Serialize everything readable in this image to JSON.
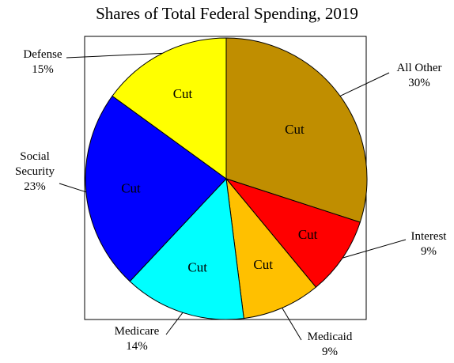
{
  "chart_data": {
    "type": "pie",
    "title": "Shares of Total Federal Spending, 2019",
    "start_angle_deg": 90,
    "direction": "clockwise",
    "slices": [
      {
        "category": [
          "All Other"
        ],
        "percent_label": "30%",
        "value": 30,
        "inner_label": "Cut",
        "color": "#C08E00"
      },
      {
        "category": [
          "Interest"
        ],
        "percent_label": "9%",
        "value": 9,
        "inner_label": "Cut",
        "color": "#FF0000"
      },
      {
        "category": [
          "Medicaid"
        ],
        "percent_label": "9%",
        "value": 9,
        "inner_label": "Cut",
        "color": "#FFC000"
      },
      {
        "category": [
          "Medicare"
        ],
        "percent_label": "14%",
        "value": 14,
        "inner_label": "Cut",
        "color": "#00FFFF"
      },
      {
        "category": [
          "Social",
          "Security"
        ],
        "percent_label": "23%",
        "value": 23,
        "inner_label": "Cut",
        "color": "#0000FF"
      },
      {
        "category": [
          "Defense"
        ],
        "percent_label": "15%",
        "value": 15,
        "inner_label": "Cut",
        "color": "#FFFF00"
      }
    ],
    "legend": "none"
  }
}
